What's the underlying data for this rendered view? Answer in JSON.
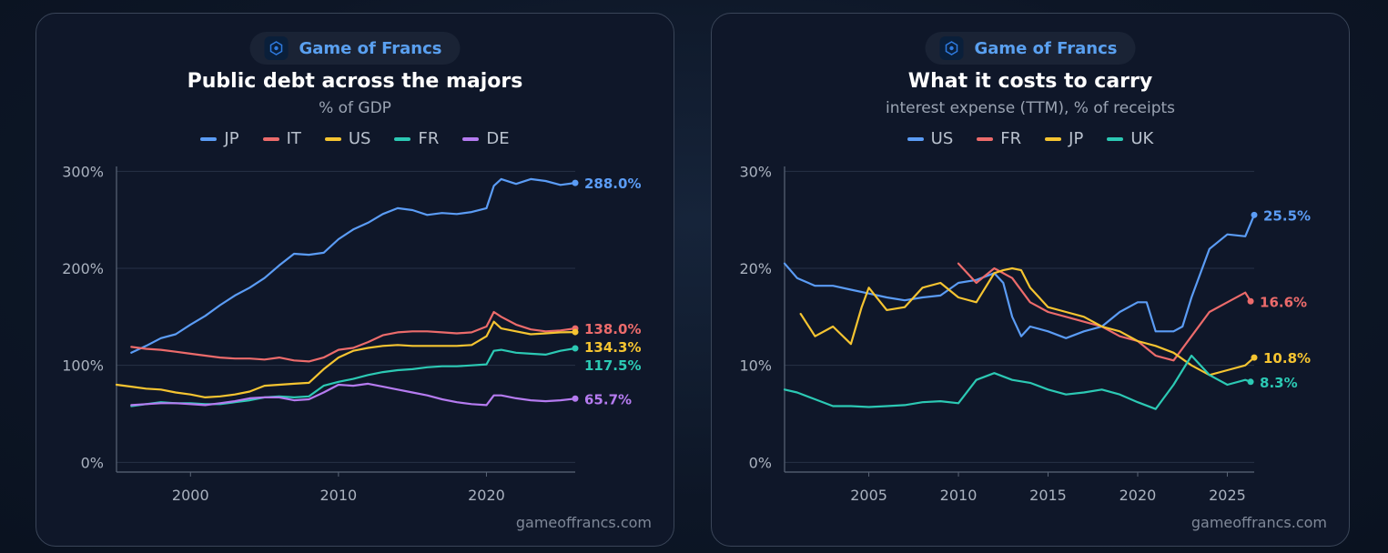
{
  "brand": {
    "name": "Game of Francs",
    "watermark": "gameoffrancs.com"
  },
  "charts": [
    {
      "id": "left",
      "title": "Public debt across the majors",
      "subtitle": "% of GDP",
      "chart_data": {
        "type": "line",
        "title": "Public debt across the majors",
        "subtitle": "% of GDP",
        "xlim": [
          1995,
          2026
        ],
        "ylim": [
          -10,
          305
        ],
        "y_ticks": [
          0,
          100,
          200,
          300
        ],
        "y_tick_labels": [
          "0%",
          "100%",
          "200%",
          "300%"
        ],
        "x_ticks": [
          2000,
          2010,
          2020
        ],
        "x_tick_labels": [
          "2000",
          "2010",
          "2020"
        ],
        "grid": true,
        "legend_position": "top-center",
        "series": [
          {
            "name": "JP",
            "color": "#5b9cf5",
            "end_label": "288.0%",
            "x": [
              1996,
              1997,
              1998,
              1999,
              2000,
              2001,
              2002,
              2003,
              2004,
              2005,
              2006,
              2007,
              2008,
              2009,
              2010,
              2011,
              2012,
              2013,
              2014,
              2015,
              2016,
              2017,
              2018,
              2019,
              2020,
              2020.5,
              2021,
              2022,
              2023,
              2024,
              2025,
              2026
            ],
            "y": [
              113,
              120,
              128,
              132,
              142,
              151,
              162,
              172,
              180,
              190,
              203,
              215,
              214,
              216,
              230,
              240,
              247,
              256,
              262,
              260,
              255,
              257,
              256,
              258,
              262,
              285,
              292,
              287,
              292,
              290,
              286,
              288
            ]
          },
          {
            "name": "IT",
            "color": "#ec6b6b",
            "end_label": "138.0%",
            "x": [
              1996,
              1997,
              1998,
              1999,
              2000,
              2001,
              2002,
              2003,
              2004,
              2005,
              2006,
              2007,
              2008,
              2009,
              2010,
              2011,
              2012,
              2013,
              2014,
              2015,
              2016,
              2017,
              2018,
              2019,
              2020,
              2020.5,
              2021,
              2022,
              2023,
              2024,
              2025,
              2026
            ],
            "y": [
              119,
              117,
              116,
              114,
              112,
              110,
              108,
              107,
              107,
              106,
              108,
              105,
              104,
              108,
              116,
              118,
              124,
              131,
              134,
              135,
              135,
              134,
              133,
              134,
              140,
              155,
              150,
              142,
              137,
              135,
              136,
              138
            ]
          },
          {
            "name": "US",
            "color": "#f5c431",
            "end_label": "134.3%",
            "x": [
              1995,
              1996,
              1997,
              1998,
              1999,
              2000,
              2001,
              2002,
              2003,
              2004,
              2005,
              2006,
              2007,
              2008,
              2009,
              2010,
              2011,
              2012,
              2013,
              2014,
              2015,
              2016,
              2017,
              2018,
              2019,
              2020,
              2020.5,
              2021,
              2022,
              2023,
              2024,
              2025,
              2026
            ],
            "y": [
              80,
              78,
              76,
              75,
              72,
              70,
              67,
              68,
              70,
              73,
              79,
              80,
              81,
              82,
              96,
              108,
              115,
              118,
              120,
              121,
              120,
              120,
              120,
              120,
              121,
              130,
              145,
              138,
              135,
              132,
              133,
              134,
              134.3
            ]
          },
          {
            "name": "FR",
            "color": "#2cc9b4",
            "end_label": "117.5%",
            "x": [
              1996,
              1997,
              1998,
              1999,
              2000,
              2001,
              2002,
              2003,
              2004,
              2005,
              2006,
              2007,
              2008,
              2009,
              2010,
              2011,
              2012,
              2013,
              2014,
              2015,
              2016,
              2017,
              2018,
              2019,
              2020,
              2020.5,
              2021,
              2022,
              2023,
              2024,
              2025,
              2026
            ],
            "y": [
              58,
              60,
              62,
              61,
              61,
              60,
              60,
              62,
              64,
              67,
              68,
              67,
              68,
              79,
              83,
              86,
              90,
              93,
              95,
              96,
              98,
              99,
              99,
              100,
              101,
              115,
              116,
              113,
              112,
              111,
              115,
              117.5
            ]
          },
          {
            "name": "DE",
            "color": "#b57bf0",
            "end_label": "65.7%",
            "x": [
              1996,
              1997,
              1998,
              1999,
              2000,
              2001,
              2002,
              2003,
              2004,
              2005,
              2006,
              2007,
              2008,
              2009,
              2010,
              2011,
              2012,
              2013,
              2014,
              2015,
              2016,
              2017,
              2018,
              2019,
              2020,
              2020.5,
              2021,
              2022,
              2023,
              2024,
              2025,
              2026
            ],
            "y": [
              59,
              60,
              61,
              61,
              60,
              59,
              61,
              63,
              66,
              67,
              67,
              64,
              65,
              72,
              80,
              79,
              81,
              78,
              75,
              72,
              69,
              65,
              62,
              60,
              59,
              69,
              69,
              66,
              64,
              63,
              64,
              65.7
            ]
          }
        ]
      }
    },
    {
      "id": "right",
      "title": "What it costs to carry",
      "subtitle": "interest expense (TTM), % of receipts",
      "chart_data": {
        "type": "line",
        "title": "What it costs to carry",
        "subtitle": "interest expense (TTM), % of receipts",
        "xlim": [
          2000.3,
          2026.5
        ],
        "ylim": [
          -1,
          30.5
        ],
        "y_ticks": [
          0,
          10,
          20,
          30
        ],
        "y_tick_labels": [
          "0%",
          "10%",
          "20%",
          "30%"
        ],
        "x_ticks": [
          2005,
          2010,
          2015,
          2020,
          2025
        ],
        "x_tick_labels": [
          "2005",
          "2010",
          "2015",
          "2020",
          "2025"
        ],
        "grid": true,
        "legend_position": "top-center",
        "series": [
          {
            "name": "US",
            "color": "#5b9cf5",
            "end_label": "25.5%",
            "x": [
              2000.3,
              2001,
              2002,
              2003,
              2004,
              2005,
              2006,
              2007,
              2008,
              2009,
              2010,
              2011,
              2012,
              2012.5,
              2013,
              2013.5,
              2014,
              2015,
              2016,
              2017,
              2018,
              2019,
              2020,
              2020.5,
              2021,
              2022,
              2022.5,
              2023,
              2024,
              2025,
              2026,
              2026.5
            ],
            "y": [
              20.5,
              19,
              18.2,
              18.2,
              17.8,
              17.4,
              17,
              16.7,
              17,
              17.2,
              18.5,
              18.8,
              19.5,
              18.5,
              15,
              13,
              14,
              13.5,
              12.8,
              13.5,
              14,
              15.5,
              16.5,
              16.5,
              13.5,
              13.5,
              14,
              17,
              22,
              23.5,
              23.3,
              25.5
            ]
          },
          {
            "name": "FR",
            "color": "#ec6b6b",
            "end_label": "16.6%",
            "x": [
              2010,
              2011,
              2012,
              2013,
              2014,
              2015,
              2016,
              2017,
              2018,
              2019,
              2020,
              2021,
              2022,
              2023,
              2024,
              2025,
              2026,
              2026.3
            ],
            "y": [
              20.5,
              18.5,
              20,
              19,
              16.5,
              15.5,
              15,
              14.5,
              14,
              13,
              12.5,
              11,
              10.5,
              13,
              15.5,
              16.5,
              17.5,
              16.6
            ]
          },
          {
            "name": "JP",
            "color": "#f5c431",
            "end_label": "10.8%",
            "x": [
              2001.2,
              2002,
              2003,
              2004,
              2004.6,
              2005,
              2006,
              2007,
              2008,
              2009,
              2010,
              2011,
              2012,
              2012.5,
              2013,
              2013.5,
              2014,
              2015,
              2016,
              2017,
              2018,
              2019,
              2020,
              2021,
              2022,
              2023,
              2024,
              2025,
              2026,
              2026.5
            ],
            "y": [
              15.3,
              13,
              14,
              12.2,
              16,
              18,
              15.7,
              16,
              18,
              18.5,
              17,
              16.5,
              19.5,
              19.8,
              20,
              19.8,
              18,
              16,
              15.5,
              15,
              14,
              13.5,
              12.5,
              12,
              11.3,
              10,
              9,
              9.5,
              10,
              10.8
            ]
          },
          {
            "name": "UK",
            "color": "#2cc9b4",
            "end_label": "8.3%",
            "x": [
              2000.3,
              2001,
              2002,
              2003,
              2004,
              2005,
              2006,
              2007,
              2008,
              2009,
              2010,
              2011,
              2012,
              2013,
              2014,
              2015,
              2016,
              2017,
              2018,
              2019,
              2020,
              2021,
              2022,
              2023,
              2024,
              2025,
              2026,
              2026.3
            ],
            "y": [
              7.5,
              7.2,
              6.5,
              5.8,
              5.8,
              5.7,
              5.8,
              5.9,
              6.2,
              6.3,
              6.1,
              8.5,
              9.2,
              8.5,
              8.2,
              7.5,
              7,
              7.2,
              7.5,
              7,
              6.2,
              5.5,
              8,
              11,
              9,
              8,
              8.5,
              8.3
            ]
          }
        ]
      }
    }
  ]
}
